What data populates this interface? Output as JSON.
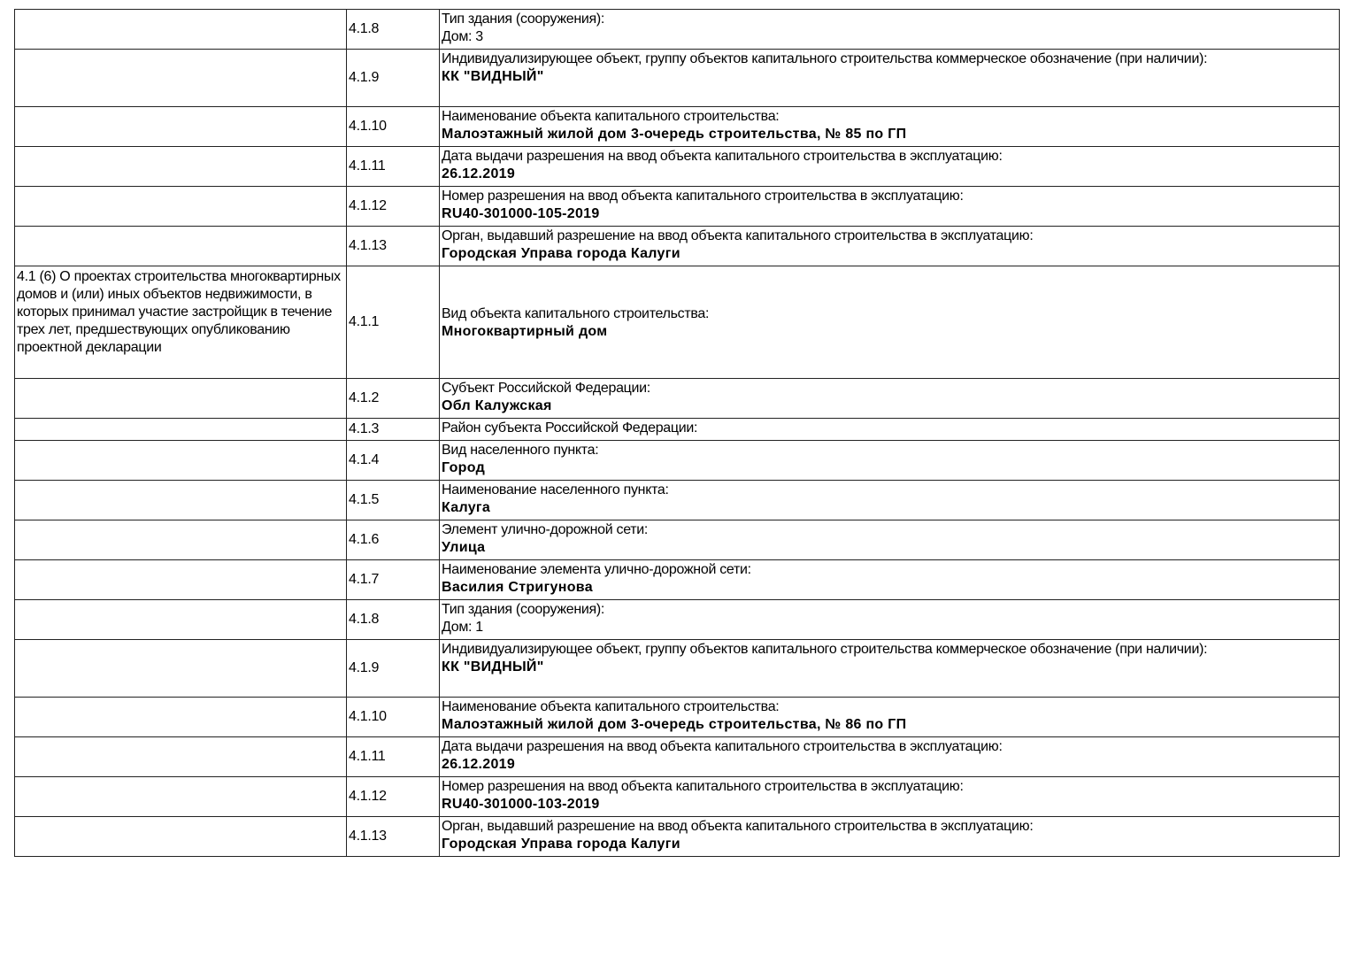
{
  "rows": [
    {
      "section": "",
      "num": "4.1.8",
      "label": "Тип здания (сооружения):",
      "value": "Дом: 3",
      "value_bold": false,
      "h": 45
    },
    {
      "section": "",
      "num": "4.1.9",
      "label": "Индивидуализирующее объект, группу объектов капитального строительства коммерческое обозначение (при наличии):",
      "value": "КК \"ВИДНЫЙ\"",
      "value_bold": true,
      "h": 65
    },
    {
      "section": "",
      "num": "4.1.10",
      "label": "Наименование объекта капитального строительства:",
      "value": "Малоэтажный жилой дом 3-очередь строительства, № 85 по ГП",
      "value_bold": true,
      "h": 45
    },
    {
      "section": "",
      "num": "4.1.11",
      "label": "Дата выдачи разрешения на ввод объекта капитального строительства в эксплуатацию:",
      "value": "26.12.2019",
      "value_bold": true,
      "h": 45
    },
    {
      "section": "",
      "num": "4.1.12",
      "label": "Номер разрешения на ввод объекта капитального строительства в эксплуатацию:",
      "value": "RU40-301000-105-2019",
      "value_bold": true,
      "h": 45
    },
    {
      "section": "",
      "num": "4.1.13",
      "label": "Орган, выдавший разрешение на ввод объекта капитального строительства в эксплуатацию:",
      "value": "Городская Управа города Калуги",
      "value_bold": true,
      "h": 45
    },
    {
      "section": "4.1 (6) О проектах строительства многоквартирных домов и (или) иных объектов недвижимости, в которых принимал участие застройщик в течение трех лет, предшествующих опубликованию проектной декларации",
      "num": "4.1.1",
      "label": "Вид объекта капитального строительства:",
      "value": "Многоквартирный дом",
      "value_bold": true,
      "h": 127
    },
    {
      "section": "",
      "num": "4.1.2",
      "label": "Субъект Российской Федерации:",
      "value": "Обл Калужская",
      "value_bold": true,
      "h": 45
    },
    {
      "section": "",
      "num": "4.1.3",
      "label": "Район субъекта Российской Федерации:",
      "value": "",
      "value_bold": true,
      "h": 25
    },
    {
      "section": "",
      "num": "4.1.4",
      "label": "Вид населенного пункта:",
      "value": "Город",
      "value_bold": true,
      "h": 45
    },
    {
      "section": "",
      "num": "4.1.5",
      "label": "Наименование населенного пункта:",
      "value": "Калуга",
      "value_bold": true,
      "h": 45
    },
    {
      "section": "",
      "num": "4.1.6",
      "label": "Элемент улично-дорожной сети:",
      "value": "Улица",
      "value_bold": true,
      "h": 45
    },
    {
      "section": "",
      "num": "4.1.7",
      "label": "Наименование элемента улично-дорожной сети:",
      "value": "Василия Стригунова",
      "value_bold": true,
      "h": 45
    },
    {
      "section": "",
      "num": "4.1.8",
      "label": "Тип здания (сооружения):",
      "value": "Дом: 1",
      "value_bold": false,
      "h": 45
    },
    {
      "section": "",
      "num": "4.1.9",
      "label": "Индивидуализирующее объект, группу объектов капитального строительства коммерческое обозначение (при наличии):",
      "value": "КК \"ВИДНЫЙ\"",
      "value_bold": true,
      "h": 65
    },
    {
      "section": "",
      "num": "4.1.10",
      "label": "Наименование объекта капитального строительства:",
      "value": "Малоэтажный жилой дом 3-очередь строительства, № 86 по ГП",
      "value_bold": true,
      "h": 45
    },
    {
      "section": "",
      "num": "4.1.11",
      "label": "Дата выдачи разрешения на ввод объекта капитального строительства в эксплуатацию:",
      "value": "26.12.2019",
      "value_bold": true,
      "h": 45
    },
    {
      "section": "",
      "num": "4.1.12",
      "label": "Номер разрешения на ввод объекта капитального строительства в эксплуатацию:",
      "value": "RU40-301000-103-2019",
      "value_bold": true,
      "h": 45
    },
    {
      "section": "",
      "num": "4.1.13",
      "label": "Орган, выдавший разрешение на ввод объекта капитального строительства в эксплуатацию:",
      "value": "Городская Управа города Калуги",
      "value_bold": true,
      "h": 45
    }
  ]
}
